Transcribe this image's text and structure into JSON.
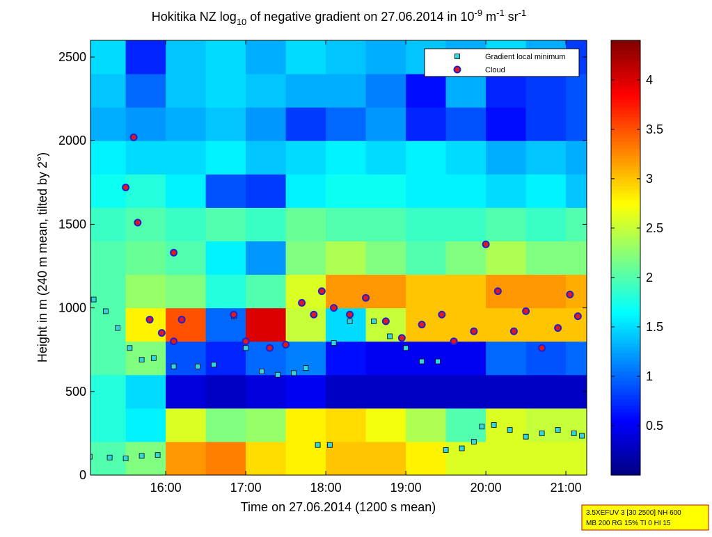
{
  "chart_data": {
    "type": "heatmap",
    "title": [
      "Hokitika NZ log",
      "10",
      " of negative gradient on 27.06.2014 in 10",
      "-9",
      " m",
      "-1",
      " sr",
      "-1"
    ],
    "xlabel": "Time on 27.06.2014 (1200 s mean)",
    "ylabel": "Height in m (240 m mean, tilted by 2°)",
    "colormap": "jet",
    "xlim": [
      15.06,
      21.26
    ],
    "ylim": [
      0,
      2600
    ],
    "clim": [
      0,
      4.4
    ],
    "xticks": [
      {
        "value": 16,
        "label": "16:00"
      },
      {
        "value": 17,
        "label": "17:00"
      },
      {
        "value": 18,
        "label": "18:00"
      },
      {
        "value": 19,
        "label": "19:00"
      },
      {
        "value": 20,
        "label": "20:00"
      },
      {
        "value": 21,
        "label": "21:00"
      }
    ],
    "yticks": [
      0,
      500,
      1000,
      1500,
      2000,
      2500
    ],
    "cticks": [
      0.5,
      1,
      1.5,
      2,
      2.5,
      3,
      3.5,
      4
    ],
    "x_edges": [
      15,
      15.5,
      16,
      16.5,
      17,
      17.5,
      18,
      18.5,
      19,
      19.5,
      20,
      20.5,
      21,
      21.5
    ],
    "y_edges": [
      0,
      200,
      400,
      600,
      800,
      1000,
      1200,
      1400,
      1600,
      1800,
      2000,
      2200,
      2400,
      2600
    ],
    "z": [
      [
        2.0,
        2.2,
        3.2,
        3.3,
        2.9,
        2.8,
        3.0,
        3.0,
        2.8,
        2.6,
        2.6,
        2.6,
        2.6
      ],
      [
        1.8,
        1.6,
        2.6,
        2.2,
        2.3,
        2.8,
        2.9,
        2.7,
        2.4,
        2.0,
        2.6,
        2.5,
        2.5
      ],
      [
        1.8,
        1.5,
        0.4,
        0.3,
        0.4,
        0.5,
        0.3,
        0.3,
        0.3,
        0.3,
        0.3,
        0.3,
        0.3
      ],
      [
        2.0,
        2.2,
        0.9,
        0.7,
        1.0,
        1.1,
        0.6,
        0.5,
        0.5,
        0.5,
        1.0,
        0.9,
        1.0
      ],
      [
        2.0,
        2.8,
        3.5,
        1.0,
        4.0,
        2.5,
        1.5,
        2.5,
        3.0,
        3.0,
        3.0,
        3.0,
        3.0
      ],
      [
        2.0,
        2.3,
        2.2,
        1.8,
        2.0,
        2.6,
        3.2,
        3.2,
        3.0,
        3.0,
        3.2,
        3.2,
        3.1
      ],
      [
        2.0,
        2.1,
        2.0,
        1.6,
        1.2,
        2.2,
        2.4,
        2.2,
        2.0,
        2.2,
        2.4,
        2.2,
        2.2
      ],
      [
        1.9,
        2.0,
        1.9,
        2.0,
        1.9,
        2.1,
        2.0,
        2.0,
        1.9,
        1.9,
        2.0,
        1.9,
        2.0
      ],
      [
        1.7,
        1.8,
        1.6,
        0.9,
        0.8,
        1.6,
        1.7,
        1.7,
        1.6,
        1.6,
        1.5,
        1.6,
        1.4
      ],
      [
        1.6,
        1.5,
        1.5,
        1.6,
        1.4,
        1.5,
        1.6,
        1.5,
        1.6,
        1.5,
        1.3,
        1.4,
        1.3
      ],
      [
        1.3,
        1.2,
        1.3,
        1.4,
        1.2,
        0.8,
        1.0,
        1.2,
        0.7,
        0.9,
        0.6,
        0.8,
        0.9
      ],
      [
        1.4,
        1.0,
        1.4,
        1.5,
        1.4,
        1.3,
        1.3,
        1.1,
        0.6,
        1.3,
        0.7,
        0.8,
        0.9
      ],
      [
        1.5,
        0.7,
        1.4,
        1.5,
        1.3,
        1.5,
        1.4,
        1.3,
        1.4,
        1.3,
        1.5,
        1.3,
        0.8
      ]
    ],
    "series": [
      {
        "name": "Gradient local minimum",
        "color": "#33d6e0",
        "marker": "square",
        "x": [
          15.05,
          15.3,
          15.5,
          15.7,
          15.9,
          15.1,
          15.25,
          15.4,
          15.55,
          15.7,
          15.85,
          16.1,
          16.4,
          16.6,
          16.85,
          17.0,
          17.2,
          17.4,
          17.6,
          17.75,
          17.9,
          18.05,
          18.1,
          18.3,
          18.6,
          18.8,
          19.0,
          19.2,
          19.4,
          19.5,
          19.7,
          19.85,
          19.95,
          20.1,
          20.3,
          20.5,
          20.7,
          20.9,
          21.1,
          21.2
        ],
        "values": [
          110,
          105,
          100,
          115,
          120,
          1050,
          980,
          880,
          760,
          690,
          700,
          650,
          650,
          660,
          950,
          760,
          620,
          600,
          610,
          640,
          180,
          180,
          790,
          920,
          920,
          830,
          760,
          680,
          680,
          150,
          160,
          200,
          290,
          300,
          270,
          230,
          250,
          270,
          250,
          235
        ]
      },
      {
        "name": "Cloud",
        "color": "#e01818",
        "edgecolor": "#2020d0",
        "marker": "circle",
        "x": [
          15.5,
          15.6,
          15.65,
          15.8,
          15.95,
          16.1,
          16.2,
          16.1,
          16.85,
          17.0,
          17.3,
          17.5,
          17.7,
          17.85,
          17.95,
          18.1,
          18.3,
          18.5,
          18.75,
          18.95,
          19.2,
          19.45,
          19.6,
          19.85,
          20.0,
          20.15,
          20.35,
          20.5,
          20.7,
          20.9,
          21.05,
          21.15
        ],
        "values": [
          1720,
          2020,
          1510,
          930,
          850,
          800,
          930,
          1330,
          960,
          800,
          760,
          780,
          1030,
          960,
          1100,
          1000,
          960,
          1060,
          920,
          820,
          900,
          960,
          800,
          860,
          1380,
          1100,
          860,
          980,
          760,
          880,
          1080,
          950
        ]
      }
    ],
    "legend": "upper right",
    "footer": [
      "3.5XEFUV 3 [30 2500] NH 600",
      "MB 200 RG 15% TI 0 HI 15"
    ]
  }
}
